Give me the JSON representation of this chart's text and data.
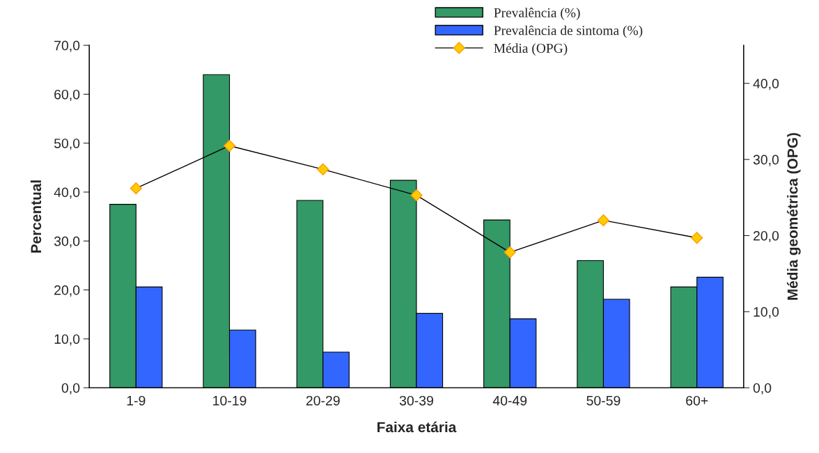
{
  "chart_data": {
    "type": "bar",
    "xlabel": "Faixa etária",
    "ylabel": "Percentual",
    "y2label": "Média geométrica (OPG)",
    "categories": [
      "1-9",
      "10-19",
      "20-29",
      "30-39",
      "40-49",
      "50-59",
      "60+"
    ],
    "series": [
      {
        "name": "Prevalência (%)",
        "color": "#339966",
        "values": [
          37.5,
          64.0,
          38.3,
          42.4,
          34.3,
          26.0,
          20.6
        ]
      },
      {
        "name": "Prevalência de sintoma (%)",
        "color": "#3366ff",
        "values": [
          20.6,
          11.8,
          7.3,
          15.2,
          14.1,
          18.1,
          22.6
        ]
      },
      {
        "name": "Média (OPG)",
        "type": "line",
        "axis": "y2",
        "color": "#000000",
        "marker": "diamond",
        "values": [
          26.2,
          31.8,
          28.7,
          25.3,
          17.8,
          22.0,
          19.7
        ]
      }
    ],
    "ylim": [
      0,
      70
    ],
    "yticks": [
      {
        "value": 0,
        "label": "0,0"
      },
      {
        "value": 10,
        "label": "10,0"
      },
      {
        "value": 20,
        "label": "20,0"
      },
      {
        "value": 30,
        "label": "30,0"
      },
      {
        "value": 40,
        "label": "40,0"
      },
      {
        "value": 50,
        "label": "50,0"
      },
      {
        "value": 60,
        "label": "60,0"
      },
      {
        "value": 70,
        "label": "70,0"
      }
    ],
    "y2lim": [
      0,
      45
    ],
    "y2ticks": [
      {
        "value": 0,
        "label": "0,0"
      },
      {
        "value": 10,
        "label": "10,0"
      },
      {
        "value": 20,
        "label": "20,0"
      },
      {
        "value": 30,
        "label": "30,0"
      },
      {
        "value": 40,
        "label": "40,0"
      }
    ],
    "grid": false,
    "legend": "top right"
  }
}
